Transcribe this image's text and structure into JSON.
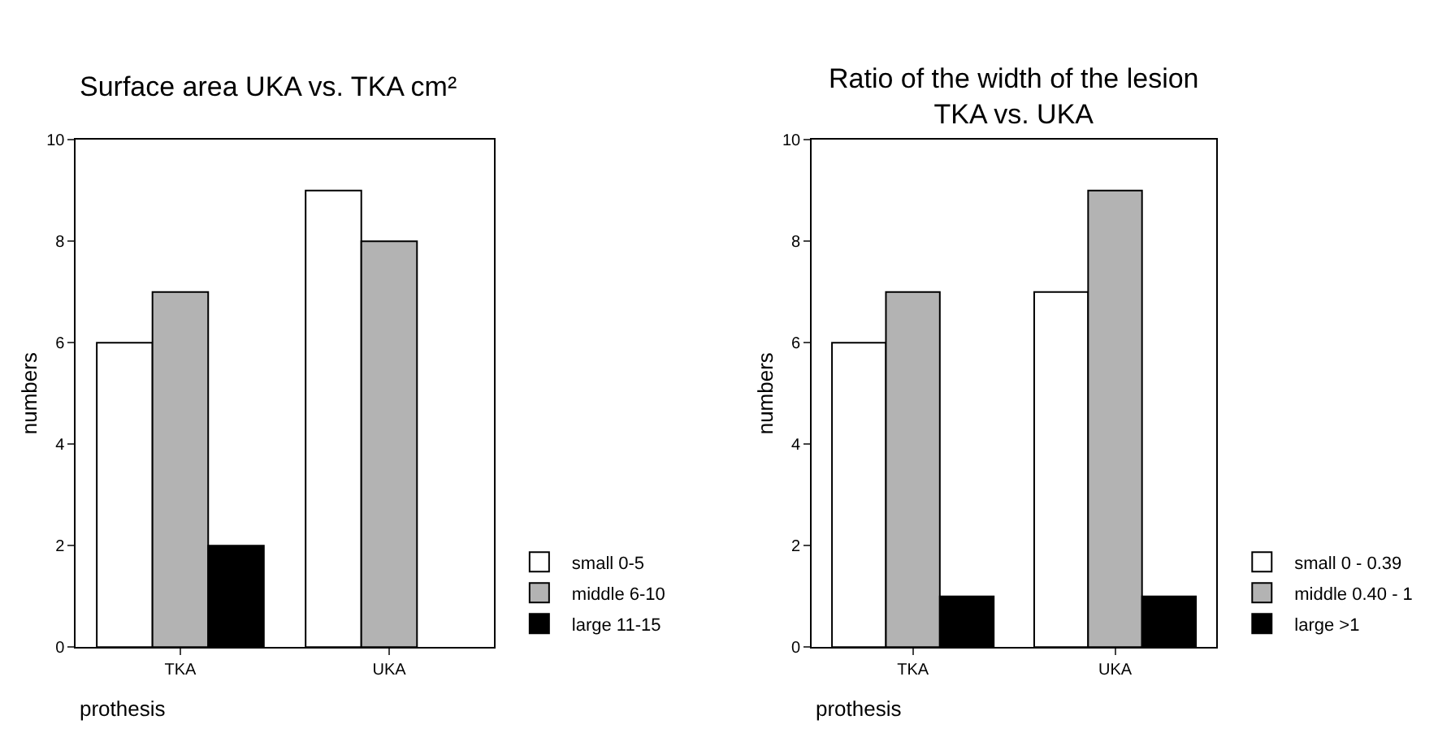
{
  "chart_data": [
    {
      "type": "bar",
      "title": "Surface area UKA vs. TKA cm²",
      "xlabel": "prothesis",
      "ylabel": "numbers",
      "categories": [
        "TKA",
        "UKA"
      ],
      "series": [
        {
          "name": "small 0-5",
          "color": "#ffffff",
          "values": [
            6,
            9
          ]
        },
        {
          "name": "middle 6-10",
          "color": "#b3b3b3",
          "values": [
            7,
            8
          ]
        },
        {
          "name": "large 11-15",
          "color": "#000000",
          "values": [
            2,
            null
          ]
        }
      ],
      "ylim": [
        0,
        10
      ],
      "yticks": [
        0,
        2,
        4,
        6,
        8,
        10
      ],
      "legend": "bottom right"
    },
    {
      "type": "bar",
      "title": "Ratio of the width of the lesion\nTKA vs. UKA",
      "xlabel": "prothesis",
      "ylabel": "numbers",
      "categories": [
        "TKA",
        "UKA"
      ],
      "series": [
        {
          "name": "small 0 - 0.39",
          "color": "#ffffff",
          "values": [
            6,
            7
          ]
        },
        {
          "name": "middle 0.40 - 1",
          "color": "#b3b3b3",
          "values": [
            7,
            9
          ]
        },
        {
          "name": "large >1",
          "color": "#000000",
          "values": [
            1,
            1
          ]
        }
      ],
      "ylim": [
        0,
        10
      ],
      "yticks": [
        0,
        2,
        4,
        6,
        8,
        10
      ],
      "legend": "bottom right"
    }
  ]
}
